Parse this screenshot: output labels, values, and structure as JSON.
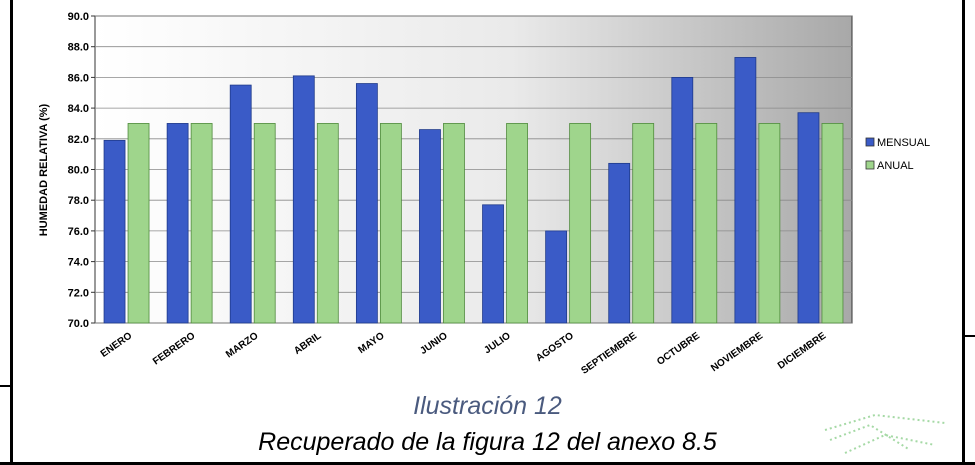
{
  "chart_data": {
    "type": "bar",
    "ylabel": "HUMEDAD RELATIVA (%)",
    "xlabel": "",
    "ylim": [
      70.0,
      90.0
    ],
    "yticks": [
      "70.0",
      "72.0",
      "74.0",
      "76.0",
      "78.0",
      "80.0",
      "82.0",
      "84.0",
      "86.0",
      "88.0",
      "90.0"
    ],
    "categories": [
      "ENERO",
      "FEBRERO",
      "MARZO",
      "ABRIL",
      "MAYO",
      "JUNIO",
      "JULIO",
      "AGOSTO",
      "SEPTIEMBRE",
      "OCTUBRE",
      "NOVIEMBRE",
      "DICIEMBRE"
    ],
    "series": [
      {
        "name": "MENSUAL",
        "color": "#3a5bc7",
        "values": [
          81.9,
          83.0,
          85.5,
          86.1,
          85.6,
          82.6,
          77.7,
          76.0,
          80.4,
          86.0,
          87.3,
          83.7
        ]
      },
      {
        "name": "ANUAL",
        "color": "#9fd58c",
        "values": [
          83.0,
          83.0,
          83.0,
          83.0,
          83.0,
          83.0,
          83.0,
          83.0,
          83.0,
          83.0,
          83.0,
          83.0
        ]
      }
    ],
    "legend_position": "right",
    "grid": true
  },
  "caption": {
    "line1": "Ilustración 12",
    "line2": "Recuperado de la figura 12 del anexo 8.5"
  }
}
